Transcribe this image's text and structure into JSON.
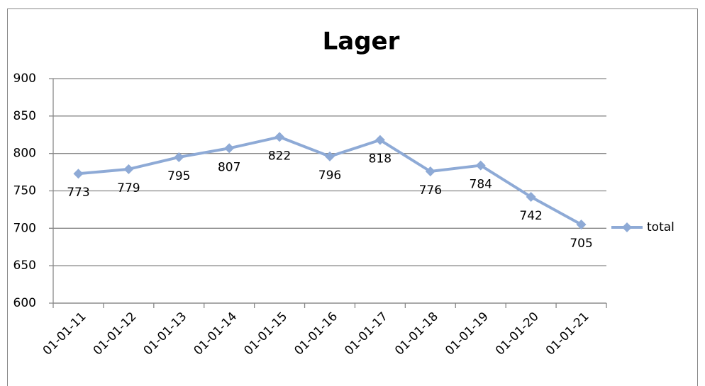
{
  "chart_data": {
    "type": "line",
    "title": "Lager",
    "categories": [
      "01-01-11",
      "01-01-12",
      "01-01-13",
      "01-01-14",
      "01-01-15",
      "01-01-16",
      "01-01-17",
      "01-01-18",
      "01-01-19",
      "01-01-20",
      "01-01-21"
    ],
    "series": [
      {
        "name": "total",
        "color": "#8eaad6",
        "values": [
          773,
          779,
          795,
          807,
          822,
          796,
          818,
          776,
          784,
          742,
          705
        ]
      }
    ],
    "ylim": [
      600,
      900
    ],
    "yticks": [
      600,
      650,
      700,
      750,
      800,
      850,
      900
    ],
    "grid": true,
    "legend": "right"
  }
}
